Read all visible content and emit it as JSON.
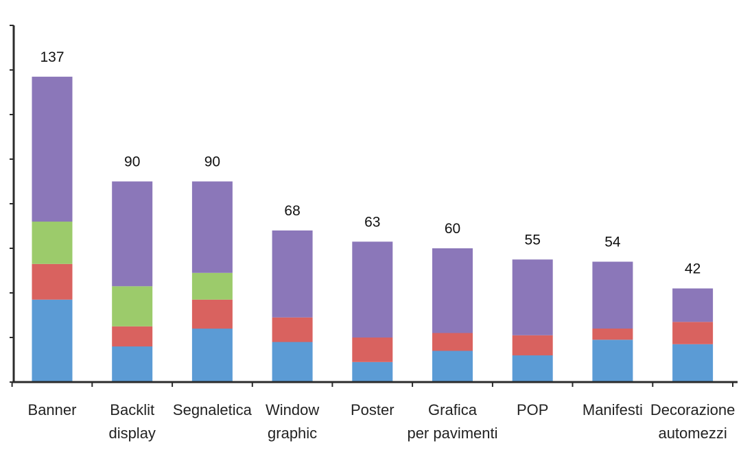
{
  "chart_data": {
    "type": "bar",
    "stacked": true,
    "title": "",
    "xlabel": "",
    "ylabel": "",
    "grid": false,
    "legend": "none",
    "categories": [
      [
        "Banner"
      ],
      [
        "Backlit",
        "display"
      ],
      [
        "Segnaletica"
      ],
      [
        "Window",
        "graphic"
      ],
      [
        "Poster"
      ],
      [
        "Grafica",
        "per pavimenti"
      ],
      [
        "POP"
      ],
      [
        "Manifesti"
      ],
      [
        "Decorazione",
        "automezzi"
      ]
    ],
    "totals": [
      "137",
      "90",
      "90",
      "68",
      "63",
      "60",
      "55",
      "54",
      "42"
    ],
    "total_values": [
      137,
      90,
      90,
      68,
      63,
      60,
      55,
      54,
      42
    ],
    "series": [
      {
        "color": "#5b9bd5",
        "values": [
          37,
          16,
          24,
          18,
          9,
          14,
          12,
          19,
          17
        ]
      },
      {
        "color": "#d9625f",
        "values": [
          16,
          9,
          13,
          11,
          11,
          8,
          9,
          5,
          10
        ]
      },
      {
        "color": "#9ccb6b",
        "values": [
          19,
          18,
          12,
          0,
          0,
          0,
          0,
          0,
          0
        ]
      },
      {
        "color": "#8b77b9",
        "values": [
          65,
          47,
          41,
          39,
          43,
          38,
          34,
          30,
          15
        ]
      }
    ],
    "ylim": [
      0,
      160
    ],
    "yticks": [
      0,
      20,
      40,
      60,
      80,
      100,
      120,
      140,
      160
    ]
  }
}
